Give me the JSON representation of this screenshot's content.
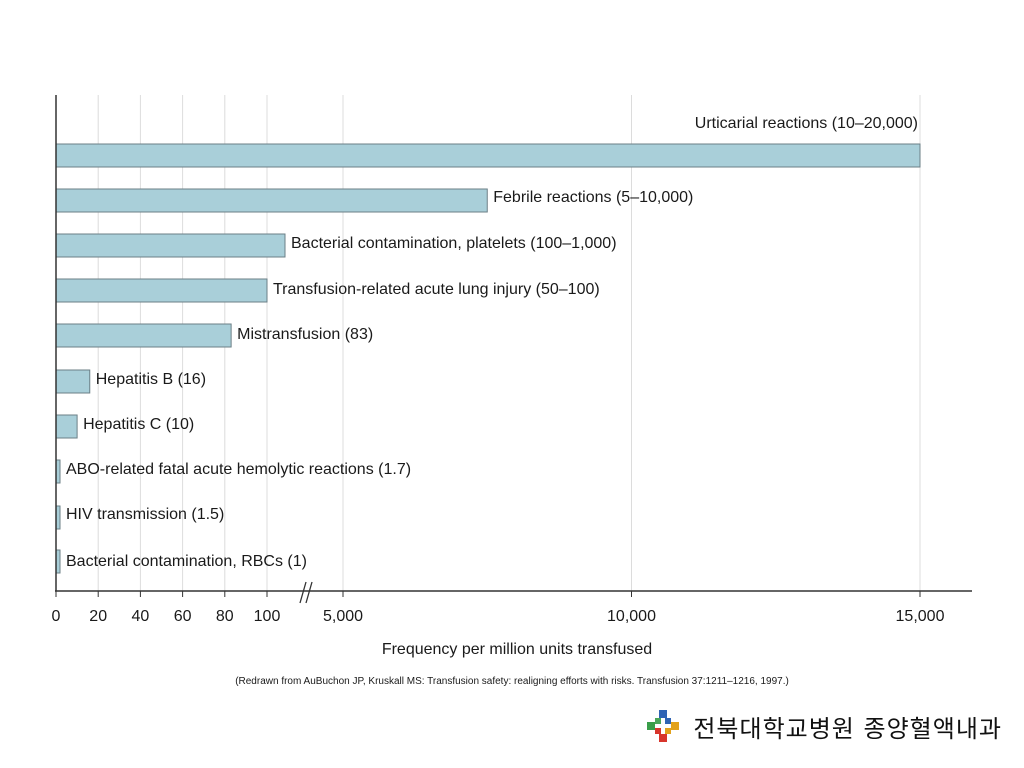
{
  "chart_data": {
    "type": "bar",
    "orientation": "horizontal",
    "categories": [
      "Urticarial reactions (10–20,000)",
      "Febrile reactions (5–10,000)",
      "Bacterial contamination, platelets (100–1,000)",
      "Transfusion-related acute lung injury (50–100)",
      "Mistransfusion (83)",
      "Hepatitis B (16)",
      "Hepatitis C (10)",
      "ABO-related fatal acute hemolytic reactions (1.7)",
      "HIV transmission (1.5)",
      "Bacterial contamination, RBCs (1)"
    ],
    "values": [
      15000,
      7500,
      1000,
      100,
      83,
      16,
      10,
      1.7,
      1.5,
      1
    ],
    "xlabel": "Frequency per million units transfused",
    "xtick_labels": [
      "0",
      "20",
      "40",
      "60",
      "80",
      "100",
      "5,000",
      "10,000",
      "15,000"
    ],
    "axis_break": "between 100 and 5,000",
    "grid": "vertical gridlines",
    "bar_color": "#a9cfd9",
    "bar_edge_color": "#6b7f86"
  },
  "source_note": "(Redrawn from AuBuchon JP, Kruskall MS: Transfusion safety: realigning efforts with risks. Transfusion 37:1211–1216, 1997.)",
  "footer": {
    "institution": "전북대학교병원  종양혈액내과",
    "logo_icon": "hospital-logo-icon"
  }
}
